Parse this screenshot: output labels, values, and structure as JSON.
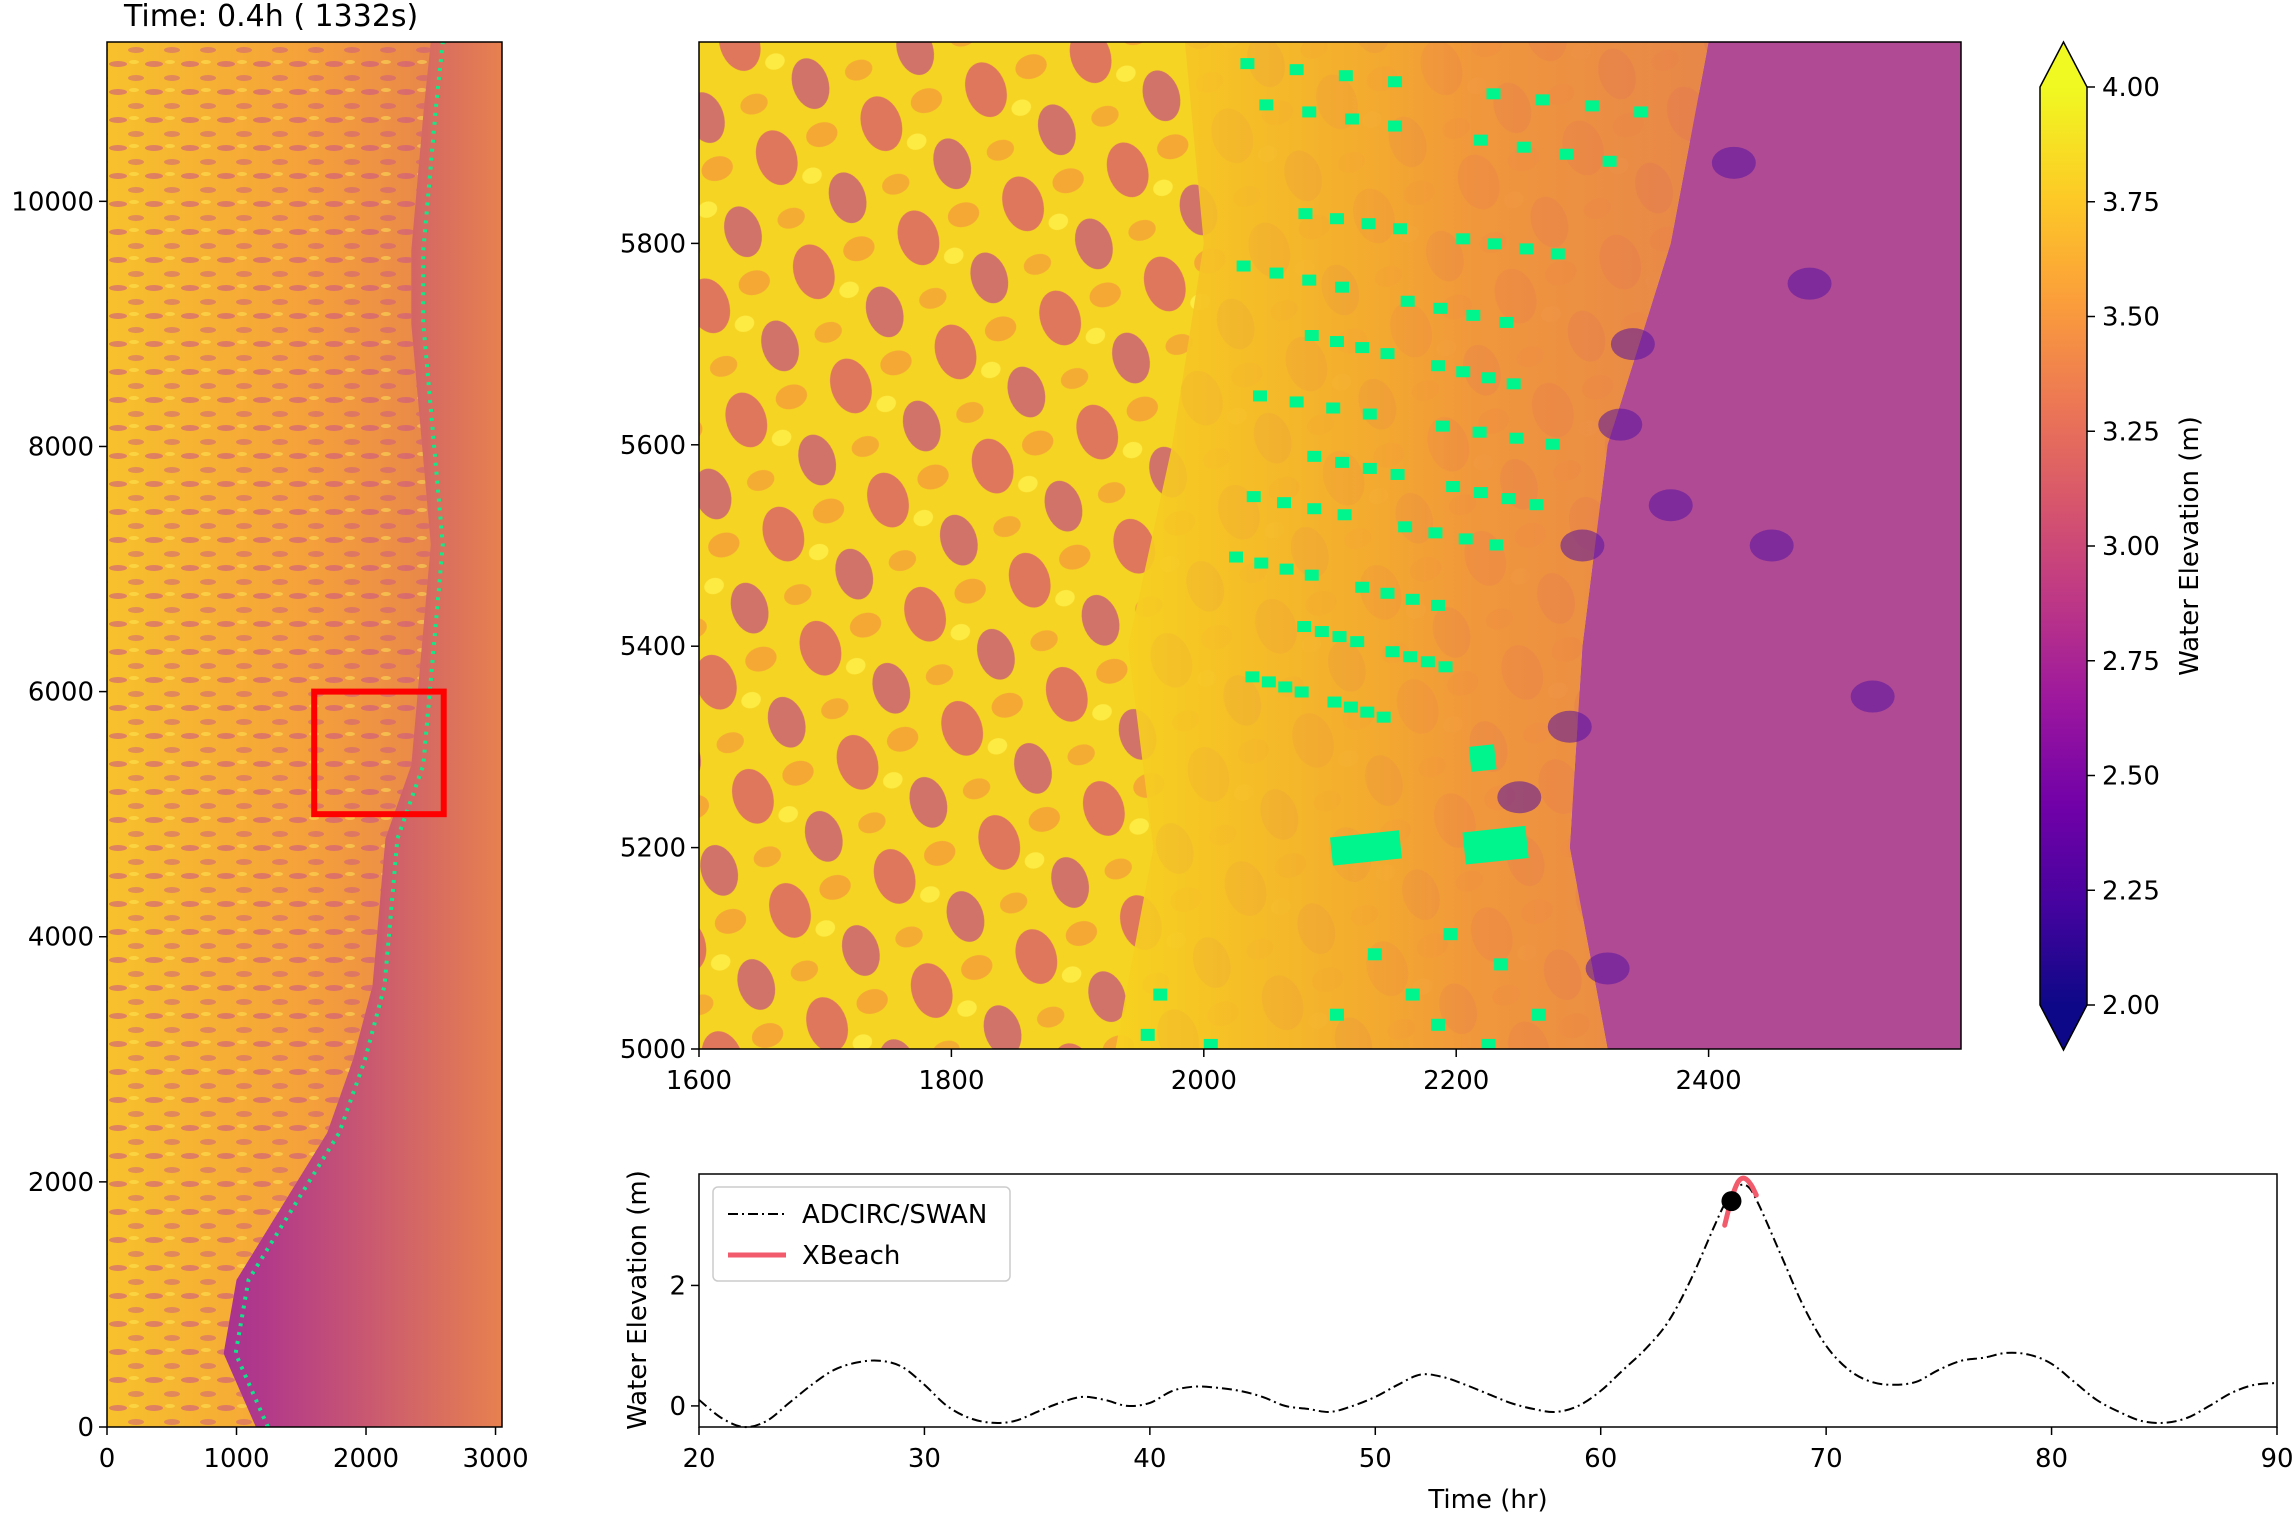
{
  "title": "Time: 0.4h (    1332s)",
  "colors": {
    "cmap": [
      "#0d0887",
      "#46039f",
      "#7201a8",
      "#9c179e",
      "#bd3786",
      "#d8576b",
      "#ed7953",
      "#fb9f3a",
      "#fdca26",
      "#f0f921"
    ],
    "buildings": "#00f58c",
    "box": "#ff0000",
    "adcirc_line": "#000000",
    "xbeach_line": "#f15b6c",
    "marker": "#000000"
  },
  "chart_data": [
    {
      "type": "heatmap",
      "name": "overview-map",
      "xlim": [
        0,
        3050
      ],
      "ylim": [
        0,
        11300
      ],
      "xticks": [
        0,
        1000,
        2000,
        3000
      ],
      "yticks": [
        0,
        2000,
        4000,
        6000,
        8000,
        10000
      ],
      "zoom_box": {
        "x": [
          1600,
          2600
        ],
        "y": [
          5000,
          6000
        ]
      },
      "shoreline": [
        [
          0,
          1150
        ],
        [
          600,
          900
        ],
        [
          1200,
          1000
        ],
        [
          1800,
          1350
        ],
        [
          2400,
          1700
        ],
        [
          3000,
          1900
        ],
        [
          3600,
          2050
        ],
        [
          4200,
          2100
        ],
        [
          4800,
          2150
        ],
        [
          5400,
          2350
        ],
        [
          6000,
          2400
        ],
        [
          6600,
          2450
        ],
        [
          7200,
          2500
        ],
        [
          7800,
          2450
        ],
        [
          8400,
          2400
        ],
        [
          9000,
          2350
        ],
        [
          9600,
          2350
        ],
        [
          10200,
          2400
        ],
        [
          10800,
          2450
        ],
        [
          11300,
          2500
        ]
      ]
    },
    {
      "type": "heatmap",
      "name": "zoom-map",
      "xlim": [
        1600,
        2600
      ],
      "ylim": [
        5000,
        6000
      ],
      "xticks": [
        1600,
        1800,
        2000,
        2200,
        2400
      ],
      "yticks": [
        5000,
        5200,
        5400,
        5600,
        5800
      ],
      "surf_zone_edge": [
        [
          5000,
          1930
        ],
        [
          5200,
          1960
        ],
        [
          5400,
          1940
        ],
        [
          5600,
          1975
        ],
        [
          5800,
          2000
        ],
        [
          6000,
          1985
        ]
      ],
      "dry_edge": [
        [
          5000,
          2320
        ],
        [
          5200,
          2290
        ],
        [
          5400,
          2300
        ],
        [
          5600,
          2320
        ],
        [
          5800,
          2370
        ],
        [
          6000,
          2400
        ]
      ]
    },
    {
      "type": "colorbar",
      "label": "Water Elevation (m)",
      "range": [
        2.0,
        4.0
      ],
      "ticks": [
        "2.00",
        "2.25",
        "2.50",
        "2.75",
        "3.00",
        "3.25",
        "3.50",
        "3.75",
        "4.00"
      ],
      "extend": "both"
    },
    {
      "type": "line",
      "name": "timeseries",
      "xlabel": "Time (hr)",
      "ylabel": "Water Elevation (m)",
      "xlim": [
        20,
        90
      ],
      "ylim": [
        -0.35,
        3.85
      ],
      "xticks": [
        20,
        30,
        40,
        50,
        60,
        70,
        80,
        90
      ],
      "yticks": [
        0,
        2
      ],
      "legend": "top-left",
      "series": [
        {
          "name": "ADCIRC/SWAN",
          "style": "dashdot",
          "x": [
            20,
            21,
            22,
            23,
            24,
            25,
            26,
            27,
            28,
            29,
            30,
            31,
            32,
            33,
            34,
            35,
            36,
            37,
            38,
            39,
            40,
            41,
            42,
            43,
            44,
            45,
            46,
            47,
            48,
            49,
            50,
            51,
            52,
            53,
            54,
            55,
            56,
            57,
            58,
            59,
            60,
            61,
            62,
            63,
            64,
            65,
            65.5,
            66,
            66.5,
            67,
            68,
            69,
            70,
            71,
            72,
            73,
            74,
            75,
            76,
            77,
            78,
            79,
            80,
            81,
            82,
            83,
            84,
            85,
            86,
            87,
            88,
            89,
            90
          ],
          "values": [
            0.1,
            -0.2,
            -0.35,
            -0.25,
            0.05,
            0.35,
            0.6,
            0.72,
            0.75,
            0.65,
            0.35,
            0.0,
            -0.2,
            -0.28,
            -0.25,
            -0.1,
            0.05,
            0.15,
            0.1,
            0.0,
            0.05,
            0.25,
            0.32,
            0.3,
            0.25,
            0.15,
            0.0,
            -0.05,
            -0.1,
            0.0,
            0.15,
            0.35,
            0.52,
            0.48,
            0.35,
            0.2,
            0.05,
            -0.05,
            -0.1,
            0.0,
            0.25,
            0.6,
            0.95,
            1.4,
            2.1,
            2.95,
            3.35,
            3.62,
            3.65,
            3.35,
            2.5,
            1.65,
            1.0,
            0.6,
            0.4,
            0.35,
            0.4,
            0.6,
            0.75,
            0.8,
            0.88,
            0.85,
            0.7,
            0.4,
            0.1,
            -0.1,
            -0.25,
            -0.28,
            -0.2,
            0.0,
            0.22,
            0.35,
            0.38
          ]
        },
        {
          "name": "XBeach",
          "style": "solid",
          "x": [
            65.5,
            65.7,
            65.9,
            66.1,
            66.3,
            66.5,
            66.7,
            66.9
          ],
          "values": [
            3.0,
            3.3,
            3.55,
            3.72,
            3.78,
            3.75,
            3.65,
            3.5
          ]
        }
      ],
      "marker": {
        "x": 65.8,
        "y": 3.4
      }
    }
  ]
}
